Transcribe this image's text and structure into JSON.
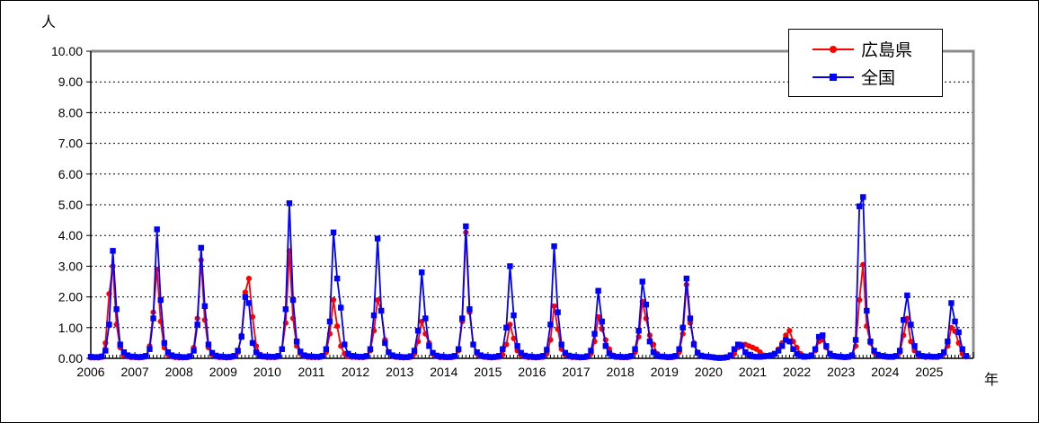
{
  "unit_label": "人",
  "x_axis_unit": "年",
  "legend": {
    "items": [
      {
        "label": "広島県",
        "color": "#FF0000",
        "marker": "circle"
      },
      {
        "label": "全国",
        "color": "#0000FF",
        "marker": "square"
      }
    ]
  },
  "frame": {
    "plot_shadow_color": "#8c8c8c",
    "axis_color": "#000000",
    "gridline_color": "#000000",
    "background": "#FFFFFF"
  },
  "chart_data": {
    "type": "line",
    "title": "",
    "xlabel": "年",
    "ylabel": "人",
    "frequency": "monthly",
    "x_start": "2006-01",
    "x_end": "2025-11",
    "categories": [
      "2006",
      "2007",
      "2008",
      "2009",
      "2010",
      "2011",
      "2012",
      "2013",
      "2014",
      "2015",
      "2016",
      "2017",
      "2018",
      "2019",
      "2020",
      "2021",
      "2022",
      "2023",
      "2024",
      "2025"
    ],
    "ylim": [
      0,
      10
    ],
    "y_ticks": [
      "0.00",
      "1.00",
      "2.00",
      "3.00",
      "4.00",
      "5.00",
      "6.00",
      "7.00",
      "8.00",
      "9.00",
      "10.00"
    ],
    "grid": "horizontal-dashed",
    "legend_position": "top-right-inside",
    "annual_peaks": {
      "広島県": [
        3.0,
        2.9,
        3.2,
        2.6,
        3.5,
        1.9,
        1.9,
        1.2,
        4.1,
        1.1,
        1.7,
        1.35,
        1.85,
        2.4,
        0.45,
        0.9,
        0.6,
        3.05,
        1.3,
        1.0
      ],
      "全国": [
        3.5,
        4.2,
        3.6,
        2.0,
        5.05,
        4.1,
        3.9,
        2.8,
        4.3,
        3.0,
        3.65,
        2.2,
        2.5,
        2.6,
        0.45,
        0.6,
        0.75,
        5.25,
        2.05,
        1.8
      ]
    },
    "series": [
      {
        "name": "広島県",
        "color": "#FF0000",
        "marker": "circle",
        "values": [
          0.02,
          0.02,
          0.02,
          0.04,
          0.5,
          2.1,
          3.0,
          1.1,
          0.35,
          0.1,
          0.05,
          0.03,
          0.03,
          0.02,
          0.03,
          0.05,
          0.4,
          1.5,
          2.9,
          1.2,
          0.35,
          0.12,
          0.05,
          0.03,
          0.02,
          0.02,
          0.03,
          0.05,
          0.35,
          1.3,
          3.2,
          1.25,
          0.35,
          0.12,
          0.05,
          0.03,
          0.03,
          0.02,
          0.03,
          0.05,
          0.2,
          0.75,
          2.15,
          2.6,
          1.35,
          0.4,
          0.12,
          0.05,
          0.03,
          0.03,
          0.03,
          0.05,
          0.3,
          1.15,
          3.5,
          1.3,
          0.4,
          0.15,
          0.06,
          0.04,
          0.03,
          0.03,
          0.03,
          0.05,
          0.2,
          0.8,
          1.9,
          1.05,
          0.4,
          0.15,
          0.06,
          0.04,
          0.04,
          0.03,
          0.03,
          0.05,
          0.25,
          0.9,
          1.9,
          1.55,
          0.6,
          0.2,
          0.08,
          0.04,
          0.03,
          0.02,
          0.03,
          0.04,
          0.15,
          0.55,
          1.2,
          0.8,
          0.5,
          0.15,
          0.06,
          0.03,
          0.03,
          0.03,
          0.03,
          0.05,
          0.25,
          1.2,
          4.1,
          1.5,
          0.45,
          0.15,
          0.06,
          0.04,
          0.03,
          0.02,
          0.03,
          0.04,
          0.12,
          0.45,
          1.1,
          0.65,
          0.25,
          0.1,
          0.05,
          0.03,
          0.03,
          0.02,
          0.03,
          0.04,
          0.15,
          0.6,
          1.7,
          0.95,
          0.3,
          0.12,
          0.05,
          0.03,
          0.03,
          0.02,
          0.03,
          0.04,
          0.15,
          0.55,
          1.35,
          0.95,
          0.6,
          0.3,
          0.1,
          0.04,
          0.03,
          0.03,
          0.03,
          0.05,
          0.2,
          0.7,
          1.85,
          1.3,
          0.75,
          0.45,
          0.15,
          0.05,
          0.04,
          0.03,
          0.03,
          0.05,
          0.2,
          0.8,
          2.4,
          1.15,
          0.5,
          0.2,
          0.08,
          0.05,
          0.04,
          0.03,
          0.02,
          0.01,
          0.01,
          0.03,
          0.06,
          0.15,
          0.35,
          0.45,
          0.45,
          0.4,
          0.35,
          0.3,
          0.2,
          0.1,
          0.08,
          0.1,
          0.15,
          0.3,
          0.5,
          0.75,
          0.9,
          0.55,
          0.35,
          0.15,
          0.08,
          0.06,
          0.1,
          0.25,
          0.55,
          0.6,
          0.35,
          0.12,
          0.06,
          0.05,
          0.04,
          0.03,
          0.04,
          0.08,
          0.4,
          1.9,
          3.05,
          1.05,
          0.5,
          0.2,
          0.1,
          0.06,
          0.05,
          0.04,
          0.04,
          0.06,
          0.2,
          0.75,
          1.3,
          0.55,
          0.25,
          0.1,
          0.06,
          0.04,
          0.05,
          0.04,
          0.04,
          0.06,
          0.15,
          0.4,
          1.0,
          0.88,
          0.5,
          0.15,
          0.05
        ]
      },
      {
        "name": "全国",
        "color": "#0000FF",
        "marker": "square",
        "values": [
          0.05,
          0.04,
          0.04,
          0.06,
          0.25,
          1.1,
          3.5,
          1.6,
          0.45,
          0.2,
          0.1,
          0.06,
          0.05,
          0.04,
          0.05,
          0.08,
          0.3,
          1.3,
          4.2,
          1.9,
          0.5,
          0.2,
          0.1,
          0.06,
          0.05,
          0.04,
          0.04,
          0.07,
          0.25,
          1.1,
          3.6,
          1.7,
          0.45,
          0.18,
          0.09,
          0.06,
          0.05,
          0.04,
          0.05,
          0.08,
          0.25,
          0.7,
          2.0,
          1.8,
          0.5,
          0.2,
          0.1,
          0.06,
          0.06,
          0.05,
          0.05,
          0.08,
          0.3,
          1.6,
          5.05,
          1.9,
          0.55,
          0.22,
          0.1,
          0.07,
          0.06,
          0.05,
          0.05,
          0.08,
          0.3,
          1.2,
          4.1,
          2.6,
          1.65,
          0.45,
          0.15,
          0.08,
          0.06,
          0.05,
          0.05,
          0.08,
          0.3,
          1.4,
          3.9,
          1.55,
          0.5,
          0.2,
          0.1,
          0.06,
          0.05,
          0.04,
          0.04,
          0.07,
          0.25,
          0.9,
          2.8,
          1.3,
          0.4,
          0.18,
          0.09,
          0.06,
          0.05,
          0.04,
          0.05,
          0.08,
          0.3,
          1.3,
          4.3,
          1.6,
          0.45,
          0.2,
          0.1,
          0.06,
          0.05,
          0.04,
          0.05,
          0.08,
          0.3,
          1.0,
          3.0,
          1.4,
          0.4,
          0.18,
          0.09,
          0.06,
          0.05,
          0.04,
          0.05,
          0.08,
          0.28,
          1.1,
          3.65,
          1.5,
          0.45,
          0.18,
          0.09,
          0.06,
          0.05,
          0.04,
          0.04,
          0.07,
          0.25,
          0.8,
          2.2,
          1.2,
          0.4,
          0.16,
          0.08,
          0.05,
          0.05,
          0.04,
          0.05,
          0.08,
          0.3,
          0.9,
          2.5,
          1.75,
          0.55,
          0.2,
          0.1,
          0.06,
          0.05,
          0.04,
          0.05,
          0.08,
          0.3,
          1.0,
          2.6,
          1.3,
          0.45,
          0.18,
          0.09,
          0.06,
          0.05,
          0.04,
          0.02,
          0.01,
          0.02,
          0.04,
          0.1,
          0.3,
          0.45,
          0.4,
          0.2,
          0.12,
          0.06,
          0.05,
          0.05,
          0.06,
          0.08,
          0.1,
          0.15,
          0.25,
          0.4,
          0.6,
          0.55,
          0.3,
          0.15,
          0.08,
          0.05,
          0.06,
          0.1,
          0.3,
          0.7,
          0.75,
          0.4,
          0.15,
          0.08,
          0.06,
          0.05,
          0.04,
          0.05,
          0.1,
          0.6,
          4.95,
          5.25,
          1.55,
          0.55,
          0.25,
          0.12,
          0.08,
          0.06,
          0.05,
          0.05,
          0.08,
          0.25,
          1.25,
          2.05,
          1.1,
          0.4,
          0.15,
          0.08,
          0.06,
          0.06,
          0.05,
          0.05,
          0.08,
          0.2,
          0.55,
          1.8,
          1.2,
          0.85,
          0.3,
          0.08
        ]
      }
    ]
  }
}
